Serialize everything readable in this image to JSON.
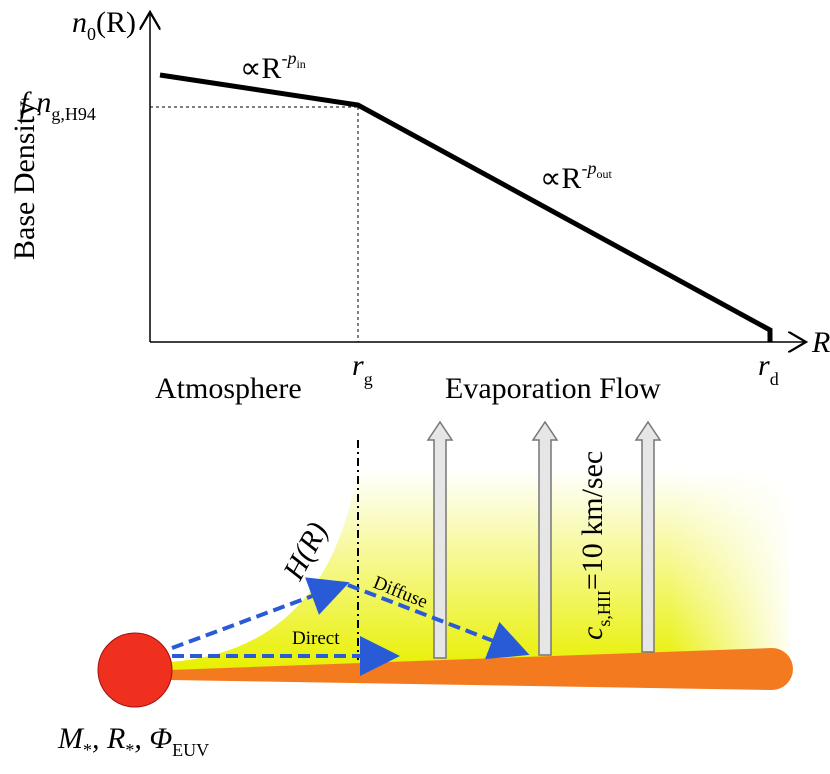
{
  "axes": {
    "y_label": "Base Density",
    "y_title": {
      "base": "n",
      "sub": "0",
      "tail": "(R)"
    },
    "x_title": "R",
    "y_marker": {
      "f": "f",
      "base": "n",
      "sub": "g,H94"
    },
    "x_markers": [
      {
        "base": "r",
        "sub": "g"
      },
      {
        "base": "r",
        "sub": "d"
      }
    ]
  },
  "annotations": {
    "inner_slope": {
      "prop": "∝R",
      "exp": "-p",
      "exp_sub": "in"
    },
    "outer_slope": {
      "prop": "∝R",
      "exp": "-p",
      "exp_sub": "out"
    }
  },
  "regions": {
    "left": "Atmosphere",
    "right": "Evaporation Flow"
  },
  "diagram": {
    "scale_height": "H(R)",
    "diffuse": "Diffuse",
    "direct": "Direct",
    "sound_speed": {
      "base": "c",
      "sub": "s,HII",
      "tail": "=10 km/sec"
    },
    "star": {
      "m": "M",
      "m_sub": "*",
      "sep1": ", R",
      "r_sub": "*",
      "sep2": ", Φ",
      "phi_sub": "EUV"
    }
  }
}
